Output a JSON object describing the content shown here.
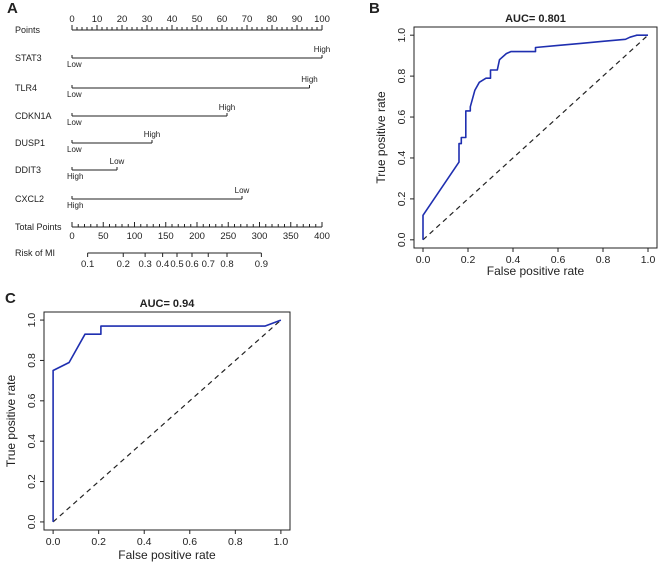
{
  "chart_data": [
    {
      "panel": "A",
      "type": "table",
      "description_title": "Nomogram",
      "points_axis": {
        "label": "Points",
        "ticks": [
          0,
          10,
          20,
          30,
          40,
          50,
          60,
          70,
          80,
          90,
          100
        ]
      },
      "variables": [
        {
          "name": "STAT3",
          "start_label": "Low",
          "end_label": "High",
          "max_points": 100
        },
        {
          "name": "TLR4",
          "start_label": "Low",
          "end_label": "High",
          "max_points": 95
        },
        {
          "name": "CDKN1A",
          "start_label": "Low",
          "end_label": "High",
          "max_points": 62
        },
        {
          "name": "DUSP1",
          "start_label": "Low",
          "end_label": "High",
          "max_points": 32
        },
        {
          "name": "DDIT3",
          "start_label": "High",
          "end_label": "Low",
          "max_points": 18
        },
        {
          "name": "CXCL2",
          "start_label": "High",
          "end_label": "Low",
          "max_points": 68
        }
      ],
      "total_points_axis": {
        "label": "Total Points",
        "ticks": [
          0,
          50,
          100,
          150,
          200,
          250,
          300,
          350,
          400
        ]
      },
      "risk_axis": {
        "label": "Risk of MI",
        "ticks": [
          {
            "label": "0.1",
            "points": 25
          },
          {
            "label": "0.2",
            "points": 82
          },
          {
            "label": "0.3",
            "points": 117
          },
          {
            "label": "0.4",
            "points": 145
          },
          {
            "label": "0.5",
            "points": 168
          },
          {
            "label": "0.6",
            "points": 192
          },
          {
            "label": "0.7",
            "points": 218
          },
          {
            "label": "0.8",
            "points": 248
          },
          {
            "label": "0.9",
            "points": 303
          }
        ]
      }
    },
    {
      "panel": "B",
      "type": "line",
      "title": "AUC= 0.801",
      "xlabel": "False positive rate",
      "ylabel": "True positive rate",
      "xlim": [
        0,
        1
      ],
      "ylim": [
        0,
        1
      ],
      "xticks": [
        "0.0",
        "0.2",
        "0.4",
        "0.6",
        "0.8",
        "1.0"
      ],
      "yticks": [
        "0.0",
        "0.2",
        "0.4",
        "0.6",
        "0.8",
        "1.0"
      ],
      "diagonal": true,
      "series": [
        {
          "name": "ROC",
          "x": [
            0,
            0,
            0.16,
            0.16,
            0.17,
            0.17,
            0.19,
            0.19,
            0.21,
            0.21,
            0.23,
            0.25,
            0.28,
            0.3,
            0.3,
            0.33,
            0.34,
            0.37,
            0.39,
            0.4,
            0.43,
            0.5,
            0.5,
            0.6,
            0.7,
            0.8,
            0.9,
            0.92,
            0.95,
            1.0
          ],
          "y": [
            0,
            0.12,
            0.38,
            0.47,
            0.47,
            0.5,
            0.5,
            0.63,
            0.63,
            0.65,
            0.73,
            0.77,
            0.79,
            0.79,
            0.83,
            0.83,
            0.88,
            0.91,
            0.92,
            0.92,
            0.92,
            0.92,
            0.94,
            0.95,
            0.96,
            0.97,
            0.98,
            0.99,
            1.0,
            1.0
          ]
        }
      ]
    },
    {
      "panel": "C",
      "type": "line",
      "title": "AUC= 0.94",
      "xlabel": "False positive rate",
      "ylabel": "True positive rate",
      "xlim": [
        0,
        1
      ],
      "ylim": [
        0,
        1
      ],
      "xticks": [
        "0.0",
        "0.2",
        "0.4",
        "0.6",
        "0.8",
        "1.0"
      ],
      "yticks": [
        "0.0",
        "0.2",
        "0.4",
        "0.6",
        "0.8",
        "1.0"
      ],
      "diagonal": true,
      "series": [
        {
          "name": "ROC",
          "x": [
            0,
            0,
            0.07,
            0.14,
            0.14,
            0.21,
            0.21,
            0.93,
            1.0
          ],
          "y": [
            0,
            0.75,
            0.79,
            0.93,
            0.93,
            0.93,
            0.97,
            0.97,
            1.0
          ]
        }
      ]
    }
  ]
}
